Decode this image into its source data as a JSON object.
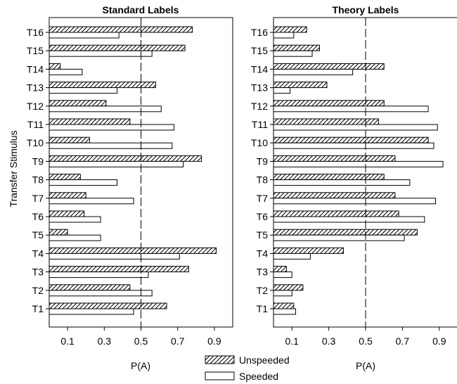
{
  "chart_data": {
    "type": "bar",
    "orientation": "horizontal",
    "categories": [
      "T1",
      "T2",
      "T3",
      "T4",
      "T5",
      "T6",
      "T7",
      "T8",
      "T9",
      "T10",
      "T11",
      "T12",
      "T13",
      "T14",
      "T15",
      "T16"
    ],
    "ylabel": "Transfer Stimulus",
    "xlim": [
      0,
      1.0
    ],
    "xticks": [
      "0.1",
      "0.3",
      "0.5",
      "0.7",
      "0.9"
    ],
    "reference_line": {
      "x": 0.5,
      "style": "dashed"
    },
    "grid": false,
    "legend": {
      "placement": "bottom-center",
      "entries": [
        {
          "label": "Unspeeded",
          "pattern": "diagonal-hatch"
        },
        {
          "label": "Speeded",
          "pattern": "white"
        }
      ]
    },
    "panels": [
      {
        "title": "Standard Labels",
        "xlabel": "P(A)",
        "series": [
          {
            "name": "Unspeeded",
            "values": [
              0.64,
              0.44,
              0.76,
              0.91,
              0.1,
              0.19,
              0.2,
              0.17,
              0.83,
              0.22,
              0.44,
              0.31,
              0.58,
              0.06,
              0.74,
              0.78
            ]
          },
          {
            "name": "Speeded",
            "values": [
              0.46,
              0.56,
              0.54,
              0.71,
              0.28,
              0.28,
              0.46,
              0.37,
              0.73,
              0.67,
              0.68,
              0.61,
              0.37,
              0.18,
              0.56,
              0.38
            ]
          }
        ]
      },
      {
        "title": "Theory Labels",
        "xlabel": "P(A)",
        "series": [
          {
            "name": "Unspeeded",
            "values": [
              0.11,
              0.16,
              0.07,
              0.38,
              0.78,
              0.68,
              0.66,
              0.6,
              0.66,
              0.84,
              0.57,
              0.6,
              0.29,
              0.6,
              0.25,
              0.18
            ]
          },
          {
            "name": "Speeded",
            "values": [
              0.12,
              0.1,
              0.1,
              0.2,
              0.71,
              0.82,
              0.88,
              0.74,
              0.92,
              0.87,
              0.89,
              0.84,
              0.09,
              0.43,
              0.21,
              0.11
            ]
          }
        ]
      }
    ]
  }
}
